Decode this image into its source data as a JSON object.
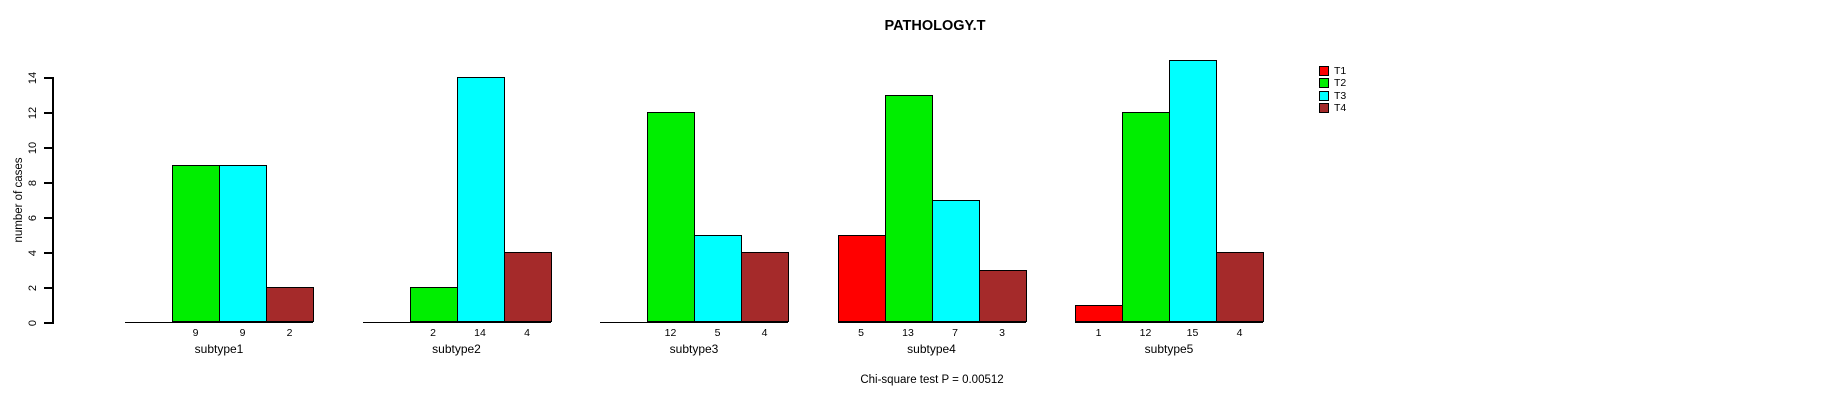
{
  "chart_data": {
    "type": "bar",
    "title": "PATHOLOGY.T",
    "ylabel": "number of cases",
    "xlabel": "",
    "categories": [
      "subtype1",
      "subtype2",
      "subtype3",
      "subtype4",
      "subtype5"
    ],
    "series": [
      {
        "name": "T1",
        "color": "#FF0000",
        "values": [
          0,
          0,
          0,
          5,
          1
        ]
      },
      {
        "name": "T2",
        "color": "#00EE00",
        "values": [
          9,
          2,
          12,
          13,
          12
        ]
      },
      {
        "name": "T3",
        "color": "#00FFFF",
        "values": [
          9,
          14,
          5,
          7,
          15
        ]
      },
      {
        "name": "T4",
        "color": "#A52A2A",
        "values": [
          2,
          4,
          4,
          3,
          4
        ]
      }
    ],
    "yticks": [
      0,
      2,
      4,
      6,
      8,
      10,
      12,
      14
    ],
    "ylim": [
      0,
      14
    ],
    "grid": false,
    "legend_position": "right",
    "bar_value_labels_shown": true,
    "zero_values_unlabeled": true,
    "annotation": "Chi-square test P = 0.00512"
  },
  "colors": {
    "background": "#FFFFFF",
    "axis": "#000000",
    "text": "#000000"
  }
}
